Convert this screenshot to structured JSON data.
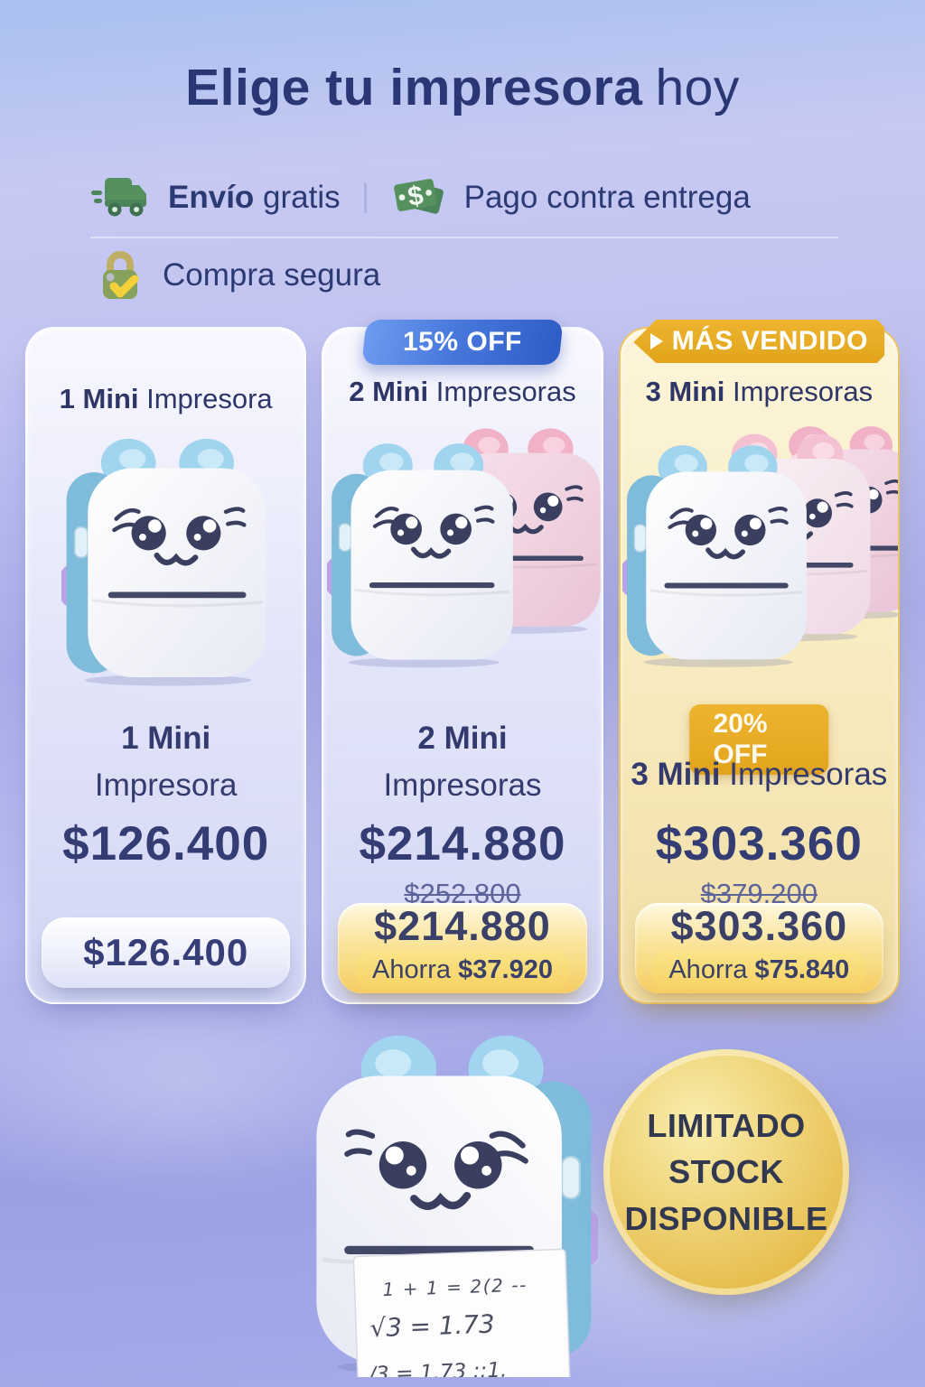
{
  "title": {
    "emphasis": "Elige tu impresora",
    "normal": "hoy"
  },
  "benefits": {
    "shipping_bold": "Envío",
    "shipping_rest": "gratis",
    "payment": "Pago contra entrega",
    "secure": "Compra segura"
  },
  "cards": [
    {
      "header_bold": "1 Mini",
      "header_rest": "Impresora",
      "name_bold": "1 Mini",
      "name_rest": "Impresora",
      "price": "$126.400",
      "button_price": "$126.400"
    },
    {
      "promo_badge": "15% OFF",
      "header_bold": "2 Mini",
      "header_rest": "Impresoras",
      "name_bold": "2 Mini",
      "name_rest": "Impresoras",
      "price": "$214.880",
      "old_price": "$252.800",
      "button_price": "$214.880",
      "savings_label": "Ahorra",
      "savings_value": "$37.920"
    },
    {
      "promo_badge": "MÁS VENDIDO",
      "discount_badge": "20% OFF",
      "header_bold": "3 Mini",
      "header_rest": "Impresoras",
      "name_bold": "3 Mini",
      "name_rest": "Impresoras",
      "price": "$303.360",
      "old_price": "$379.200",
      "button_price": "$303.360",
      "savings_label": "Ahorra",
      "savings_value": "$75.840"
    }
  ],
  "stock_badge": {
    "line1": "LIMITADO",
    "line2": "STOCK",
    "line3": "DISPONIBLE"
  },
  "receipt_lines": [
    "1 + 1 = 2(2 --",
    "√3 = 1.73",
    "/3 = 1.73 ::1."
  ],
  "colors": {
    "accent_navy": "#2e3a74",
    "gold": "#e2a41d",
    "blue_badge": "#2e5cc6",
    "icon_green": "#55905f"
  }
}
